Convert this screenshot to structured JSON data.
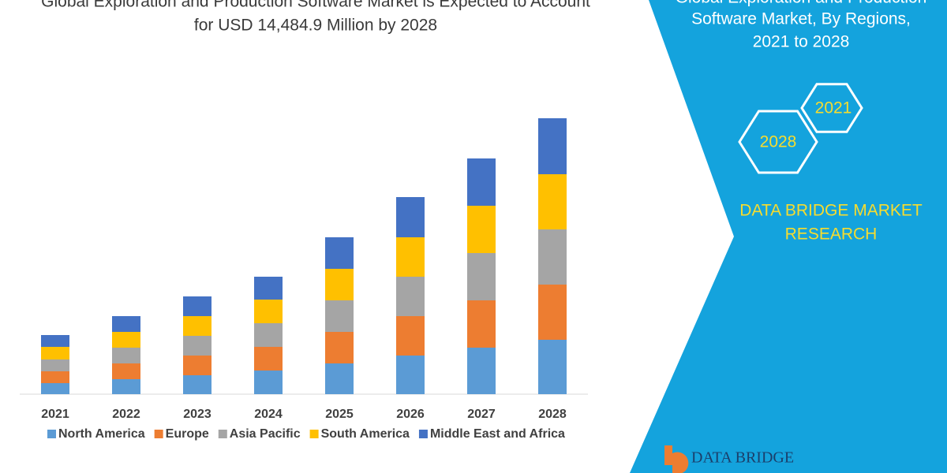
{
  "chart_data": {
    "type": "stacked_bar",
    "title_lines": [
      "Global Exploration and Production Software Market is Expected to Account",
      "for USD 14,484.9 Million by 2028"
    ],
    "categories": [
      "2021",
      "2022",
      "2023",
      "2024",
      "2025",
      "2026",
      "2027",
      "2028"
    ],
    "series": [
      {
        "name": "North America",
        "color": "#5b9bd5",
        "values": [
          14,
          19,
          24,
          30,
          39,
          49,
          59,
          69
        ]
      },
      {
        "name": "Europe",
        "color": "#ed7d31",
        "values": [
          15,
          20,
          25,
          30,
          40,
          50,
          60,
          70
        ]
      },
      {
        "name": "Asia Pacific",
        "color": "#a5a5a5",
        "values": [
          15,
          20,
          25,
          30,
          40,
          50,
          60,
          70
        ]
      },
      {
        "name": "South America",
        "color": "#ffc000",
        "values": [
          16,
          20,
          25,
          30,
          40,
          50,
          60,
          70
        ]
      },
      {
        "name": "Middle East and Africa",
        "color": "#4472c4",
        "values": [
          15,
          20,
          25,
          29,
          40,
          51,
          60,
          71
        ]
      }
    ]
  },
  "side_panel": {
    "title_lines": [
      "Global Exploration and Production",
      "Software Market, By Regions,",
      "2021 to 2028"
    ],
    "hexagons": [
      "2021",
      "2028"
    ],
    "brand_lines": [
      "DATA BRIDGE MARKET",
      "RESEARCH"
    ],
    "logo": "DATA BRIDGE"
  }
}
